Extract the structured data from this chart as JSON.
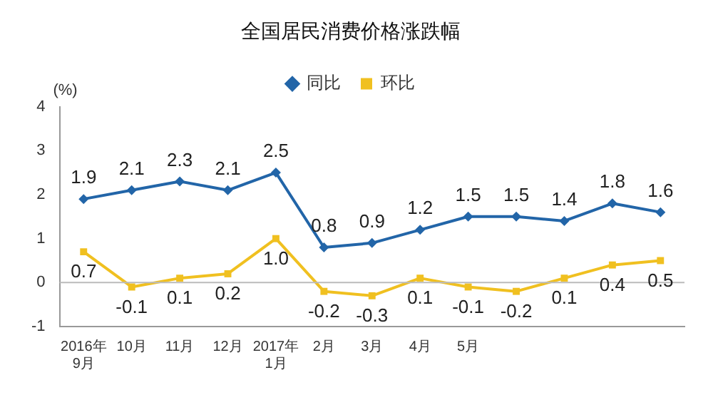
{
  "chart_data": {
    "type": "line",
    "title": "全国居民消费价格涨跌幅",
    "ylabel": "(%)",
    "categories": [
      "2016年\n9月",
      "10月",
      "11月",
      "12月",
      "2017年\n1月",
      "2月",
      "3月",
      "4月",
      "5月",
      null,
      null,
      null,
      null
    ],
    "series": [
      {
        "name": "同比",
        "color": "#2265a8",
        "marker": "diamond",
        "values": [
          1.9,
          2.1,
          2.3,
          2.1,
          2.5,
          0.8,
          0.9,
          1.2,
          1.5,
          1.5,
          1.4,
          1.8,
          1.6
        ],
        "value_labels": [
          "1.9",
          "2.1",
          "2.3",
          "2.1",
          "2.5",
          "0.8",
          "0.9",
          "1.2",
          "1.5",
          "1.5",
          "1.4",
          "1.8",
          "1.6"
        ]
      },
      {
        "name": "环比",
        "color": "#f0c020",
        "marker": "square",
        "values": [
          0.7,
          -0.1,
          0.1,
          0.2,
          1.0,
          -0.2,
          -0.3,
          0.1,
          -0.1,
          -0.2,
          0.1,
          0.4,
          0.5
        ],
        "value_labels": [
          "0.7",
          "-0.1",
          "0.1",
          "0.2",
          "1.0",
          "-0.2",
          "-0.3",
          "0.1",
          "-0.1",
          "-0.2",
          "0.1",
          "0.4",
          "0.5"
        ]
      }
    ],
    "ylim": [
      -1,
      4
    ],
    "yticks": [
      -1,
      0,
      1,
      2,
      3,
      4
    ],
    "legend": "top",
    "ref_lines": [
      {
        "axis": "y",
        "value": 0,
        "color": "#bbbbbb"
      }
    ]
  }
}
